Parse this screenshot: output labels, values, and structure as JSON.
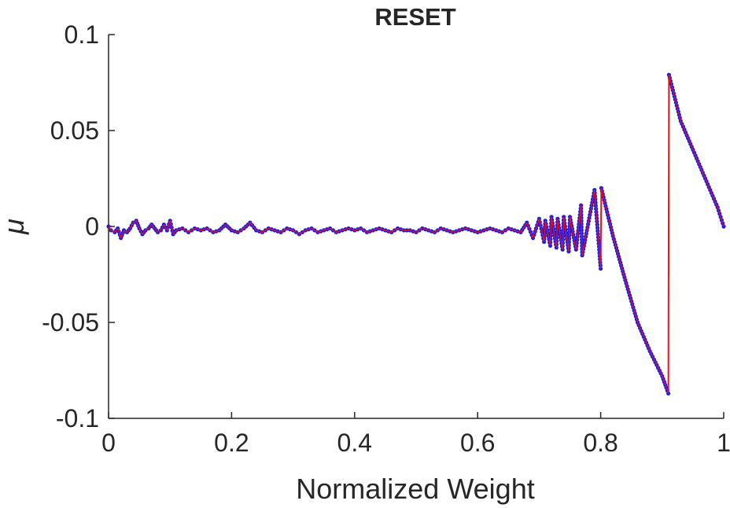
{
  "chart_data": {
    "type": "line",
    "title": "RESET",
    "xlabel": "Normalized Weight",
    "ylabel": "μ",
    "xlim": [
      0,
      1
    ],
    "ylim": [
      -0.1,
      0.1
    ],
    "xticks": [
      0,
      0.2,
      0.4,
      0.6,
      0.8,
      1
    ],
    "xtick_labels": [
      "0",
      "0.2",
      "0.4",
      "0.6",
      "0.8",
      "1"
    ],
    "yticks": [
      -0.1,
      -0.05,
      0,
      0.05,
      0.1
    ],
    "ytick_labels": [
      "-0.1",
      "-0.05",
      "0",
      "0.05",
      "0.1"
    ],
    "grid": false,
    "series": [
      {
        "line_color": "#e8141e",
        "marker_color": "#1a1ae6",
        "x": [
          0,
          0.004,
          0.01,
          0.015,
          0.02,
          0.025,
          0.03,
          0.035,
          0.04,
          0.045,
          0.05,
          0.055,
          0.06,
          0.065,
          0.07,
          0.075,
          0.08,
          0.085,
          0.09,
          0.095,
          0.1,
          0.105,
          0.11,
          0.12,
          0.13,
          0.14,
          0.15,
          0.16,
          0.17,
          0.18,
          0.19,
          0.2,
          0.21,
          0.22,
          0.23,
          0.24,
          0.25,
          0.26,
          0.27,
          0.28,
          0.29,
          0.3,
          0.31,
          0.32,
          0.33,
          0.34,
          0.35,
          0.36,
          0.37,
          0.38,
          0.39,
          0.4,
          0.41,
          0.42,
          0.43,
          0.44,
          0.45,
          0.46,
          0.47,
          0.48,
          0.49,
          0.5,
          0.51,
          0.52,
          0.53,
          0.54,
          0.55,
          0.56,
          0.57,
          0.58,
          0.59,
          0.6,
          0.61,
          0.62,
          0.63,
          0.64,
          0.65,
          0.66,
          0.67,
          0.68,
          0.69,
          0.7,
          0.708,
          0.71,
          0.718,
          0.72,
          0.728,
          0.73,
          0.738,
          0.74,
          0.748,
          0.75,
          0.76,
          0.768,
          0.77,
          0.79,
          0.8,
          0.801,
          0.82,
          0.84,
          0.86,
          0.88,
          0.9,
          0.91,
          0.911,
          0.93,
          0.95,
          0.97,
          0.99,
          1.0
        ],
        "y": [
          0,
          -0.002,
          -0.003,
          -0.001,
          -0.006,
          -0.002,
          -0.003,
          -0.001,
          0.002,
          0.003,
          -0.001,
          -0.004,
          -0.002,
          -0.001,
          0.001,
          -0.001,
          -0.003,
          -0.002,
          0.001,
          -0.002,
          0.003,
          -0.004,
          -0.002,
          -0.001,
          -0.003,
          -0.001,
          -0.002,
          -0.001,
          -0.003,
          -0.002,
          0.001,
          -0.002,
          -0.003,
          -0.001,
          0.002,
          -0.002,
          -0.003,
          -0.001,
          -0.002,
          -0.003,
          -0.001,
          -0.002,
          -0.004,
          -0.002,
          -0.001,
          -0.003,
          -0.002,
          -0.001,
          -0.003,
          -0.002,
          -0.001,
          -0.002,
          -0.001,
          -0.003,
          -0.002,
          -0.001,
          -0.002,
          -0.003,
          -0.001,
          -0.002,
          -0.002,
          -0.003,
          -0.001,
          -0.002,
          -0.003,
          -0.001,
          -0.002,
          -0.003,
          -0.002,
          -0.001,
          -0.002,
          -0.003,
          -0.002,
          -0.001,
          -0.002,
          -0.003,
          -0.001,
          -0.002,
          -0.003,
          0.002,
          -0.006,
          0.004,
          -0.008,
          0.003,
          -0.01,
          0.005,
          -0.011,
          0.004,
          -0.012,
          0.005,
          -0.013,
          0.005,
          -0.012,
          0.011,
          -0.015,
          0.019,
          -0.022,
          0.02,
          -0.005,
          -0.028,
          -0.05,
          -0.065,
          -0.078,
          -0.087,
          0.079,
          0.055,
          0.04,
          0.025,
          0.01,
          0
        ]
      }
    ]
  }
}
